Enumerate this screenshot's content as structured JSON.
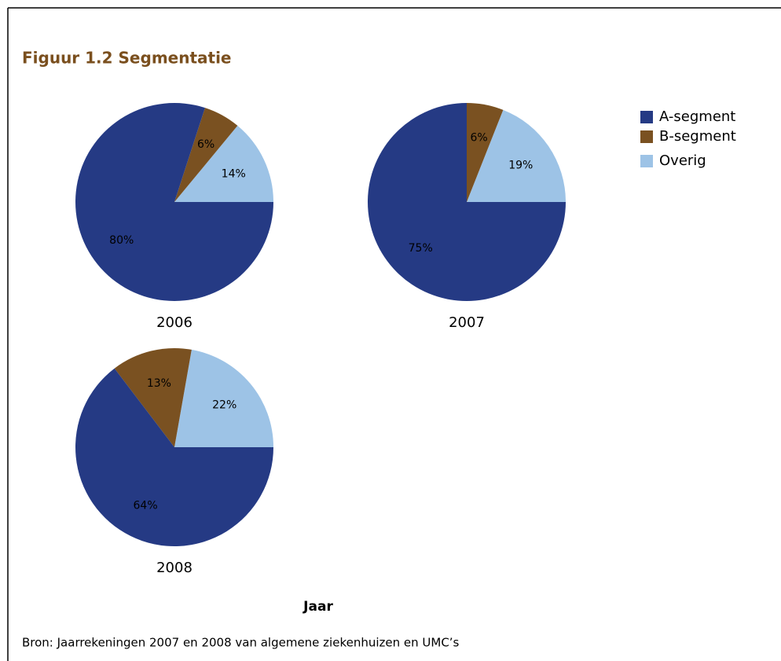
{
  "chart_data": {
    "type": "pie",
    "title": "Figuur 1.2 Segmentatie",
    "xlabel": "Jaar",
    "source": "Bron: Jaarrekeningen 2007 en 2008 van algemene ziekenhuizen en UMC’s",
    "categories": [
      "A-segment",
      "B-segment",
      "Overig"
    ],
    "colors": [
      "#253a84",
      "#7a5121",
      "#9dc3e6"
    ],
    "series": [
      {
        "name": "2006",
        "values": [
          80,
          6,
          14
        ],
        "value_labels": [
          "80%",
          "6%",
          "14%"
        ]
      },
      {
        "name": "2007",
        "values": [
          75,
          6,
          19
        ],
        "value_labels": [
          "75%",
          "6%",
          "19%"
        ]
      },
      {
        "name": "2008",
        "values": [
          64,
          13,
          22
        ],
        "value_labels": [
          "64%",
          "13%",
          "22%"
        ]
      }
    ]
  }
}
